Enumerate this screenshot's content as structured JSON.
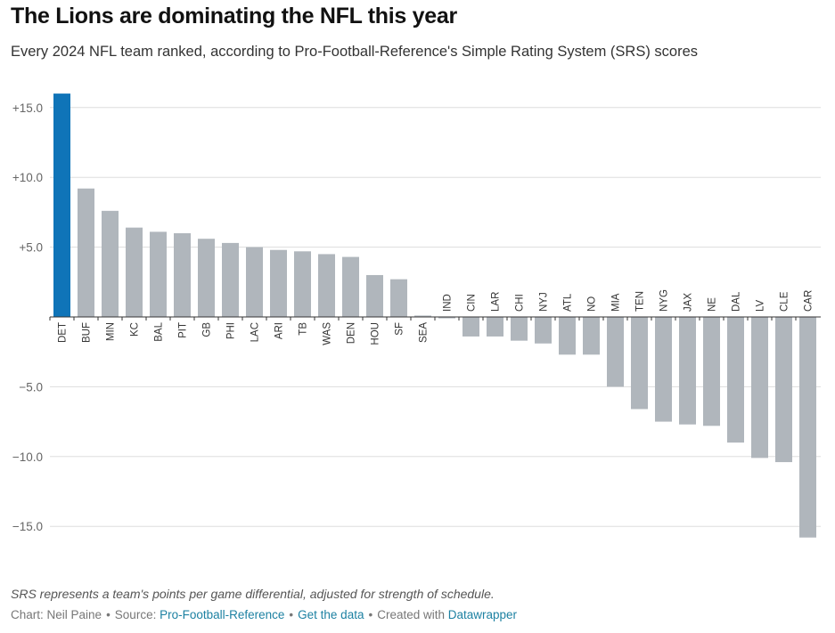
{
  "header": {
    "title": "The Lions are dominating the NFL this year",
    "subtitle": "Every 2024 NFL team ranked, according to Pro-Football-Reference's Simple Rating System (SRS) scores"
  },
  "footer": {
    "note": "SRS represents a team's points per game differential, adjusted for strength of schedule.",
    "chart_by": "Chart: Neil Paine",
    "source_label": "Source:",
    "source_link": "Pro-Football-Reference",
    "data_link": "Get the data",
    "created_with": "Created with",
    "tool_link": "Datawrapper"
  },
  "colors": {
    "highlight": "#0f74b8",
    "bar": "#b0b6bc",
    "grid": "#dddddd",
    "baseline": "#333333"
  },
  "chart_data": {
    "type": "bar",
    "categories": [
      "DET",
      "BUF",
      "MIN",
      "KC",
      "BAL",
      "PIT",
      "GB",
      "PHI",
      "LAC",
      "ARI",
      "TB",
      "WAS",
      "DEN",
      "HOU",
      "SF",
      "SEA",
      "IND",
      "CIN",
      "LAR",
      "CHI",
      "NYJ",
      "ATL",
      "NO",
      "MIA",
      "TEN",
      "NYG",
      "JAX",
      "NE",
      "DAL",
      "LV",
      "CLE",
      "CAR"
    ],
    "values": [
      16.0,
      9.2,
      7.6,
      6.4,
      6.1,
      6.0,
      5.6,
      5.3,
      5.0,
      4.8,
      4.7,
      4.5,
      4.3,
      3.0,
      2.7,
      0.1,
      -0.1,
      -1.4,
      -1.4,
      -1.7,
      -1.9,
      -2.7,
      -2.7,
      -5.0,
      -6.6,
      -7.5,
      -7.7,
      -7.8,
      -9.0,
      -10.1,
      -10.4,
      -15.8
    ],
    "highlight": "DET",
    "yticks": [
      "+15.0",
      "+10.0",
      "+5.0",
      "−5.0",
      "−10.0",
      "−15.0"
    ],
    "ytick_values": [
      15,
      10,
      5,
      -5,
      -10,
      -15
    ],
    "ylim": [
      -15.8,
      16.0
    ],
    "title": "The Lions are dominating the NFL this year",
    "subtitle": "Every 2024 NFL team ranked, according to Pro-Football-Reference's Simple Rating System (SRS) scores",
    "xlabel": "",
    "ylabel": "",
    "grid": true
  }
}
